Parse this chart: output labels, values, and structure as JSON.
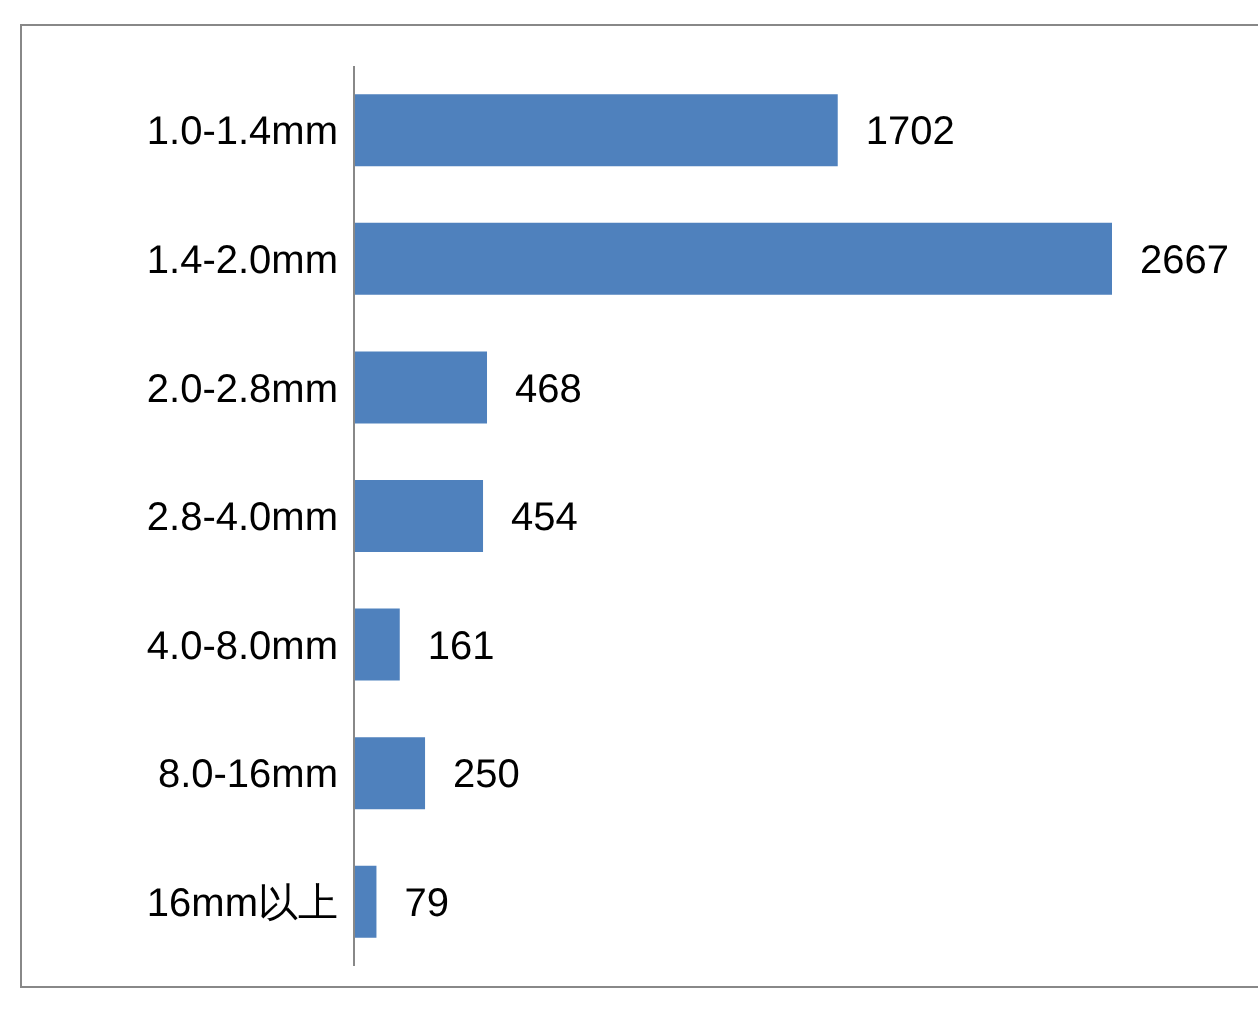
{
  "chart_data": {
    "type": "bar",
    "orientation": "horizontal",
    "categories": [
      "1.0-1.4mm",
      "1.4-2.0mm",
      "2.0-2.8mm",
      "2.8-4.0mm",
      "4.0-8.0mm",
      "8.0-16mm",
      "16mm以上"
    ],
    "values": [
      1702,
      2667,
      468,
      454,
      161,
      250,
      79
    ],
    "color": "#4f81bd",
    "data_labels": true
  }
}
